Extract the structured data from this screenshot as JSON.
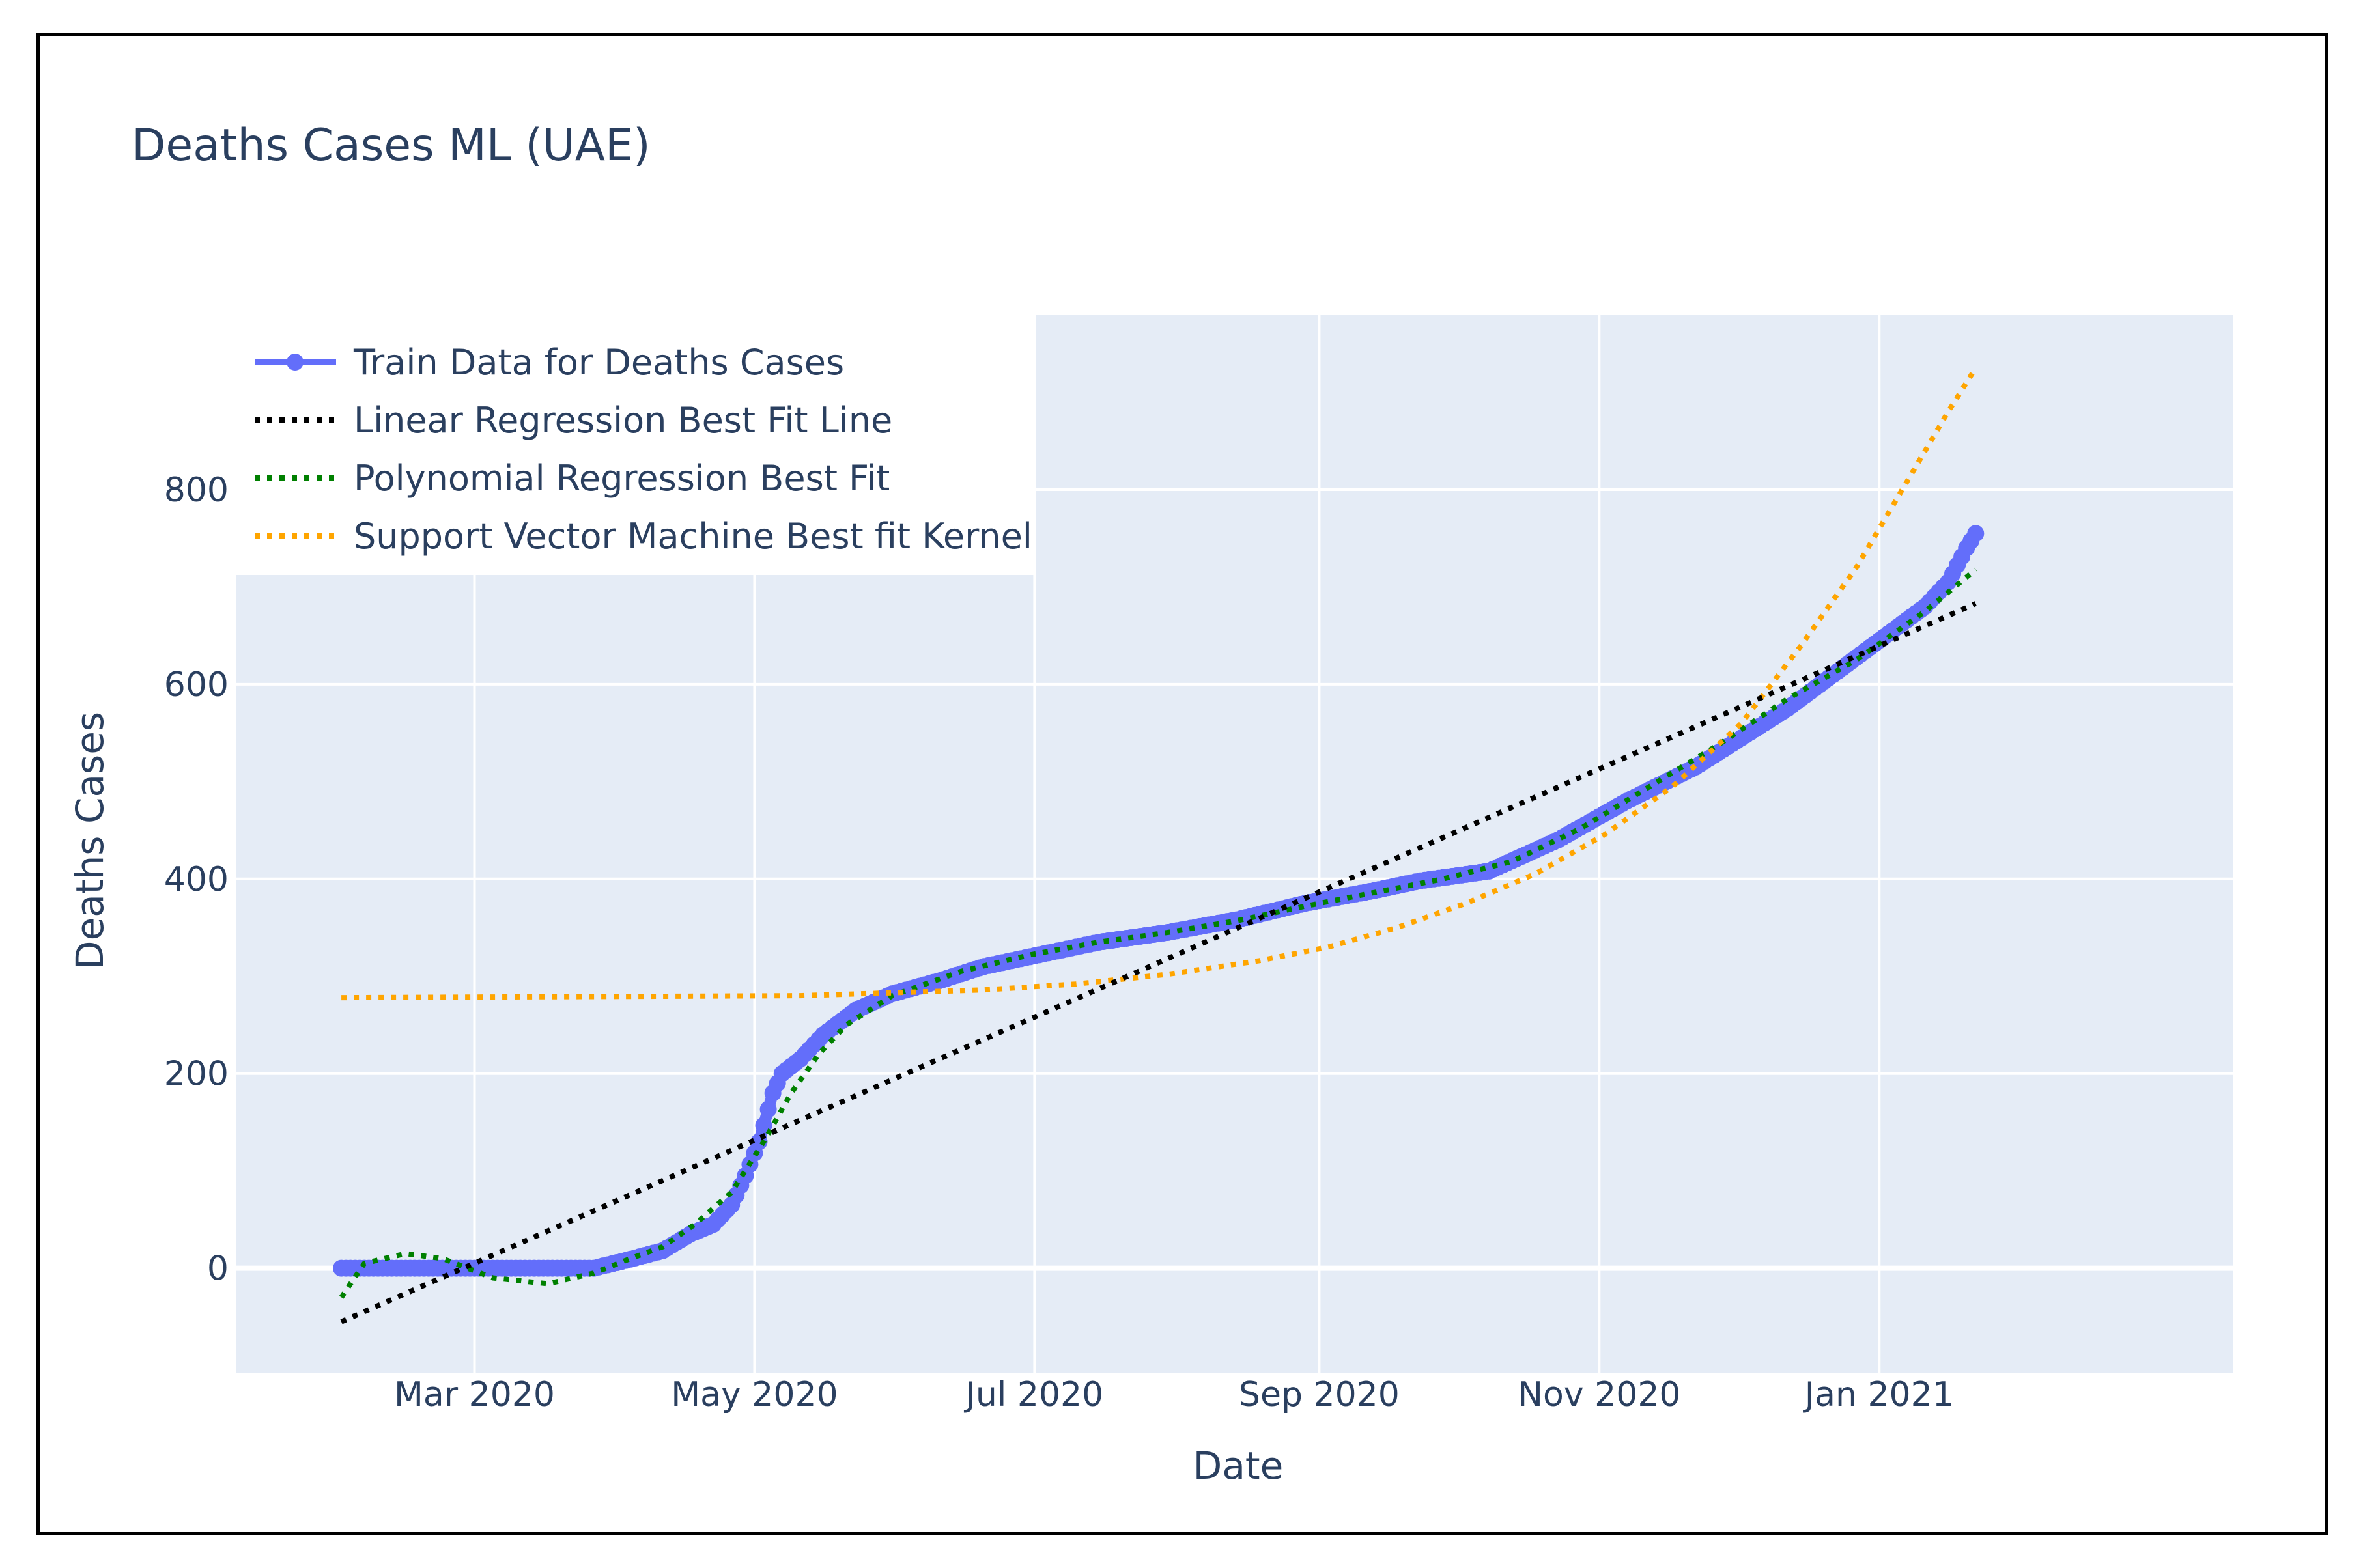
{
  "chart_data": {
    "type": "line",
    "title": "Deaths Cases ML (UAE)",
    "xlabel": "Date",
    "ylabel": "Deaths Cases",
    "x_ticks": [
      {
        "day": 29,
        "label": "Mar 2020"
      },
      {
        "day": 90,
        "label": "May 2020"
      },
      {
        "day": 151,
        "label": "Jul 2020"
      },
      {
        "day": 213,
        "label": "Sep 2020"
      },
      {
        "day": 274,
        "label": "Nov 2020"
      },
      {
        "day": 335,
        "label": "Jan 2021"
      }
    ],
    "x_range_days": [
      -23,
      412
    ],
    "x_start_date": "2020-01-31",
    "y_ticks": [
      0,
      200,
      400,
      600,
      800
    ],
    "ylim": [
      -108,
      980
    ],
    "grid": true,
    "legend_position": "top-left",
    "colors": {
      "plot_bg": "#e5ecf6",
      "train": "#636efa",
      "linear": "#000000",
      "polynomial": "#008000",
      "svm": "#ffa500",
      "text": "#2a3f5f"
    },
    "series": [
      {
        "name": "Train Data for Deaths Cases",
        "style": "line+markers",
        "color": "#636efa",
        "points": [
          [
            0,
            0
          ],
          [
            40,
            0
          ],
          [
            55,
            0
          ],
          [
            62,
            8
          ],
          [
            70,
            18
          ],
          [
            76,
            35
          ],
          [
            81,
            45
          ],
          [
            85,
            65
          ],
          [
            88,
            95
          ],
          [
            91,
            130
          ],
          [
            94,
            180
          ],
          [
            96,
            200
          ],
          [
            100,
            215
          ],
          [
            105,
            240
          ],
          [
            112,
            265
          ],
          [
            120,
            282
          ],
          [
            130,
            295
          ],
          [
            140,
            310
          ],
          [
            150,
            320
          ],
          [
            165,
            335
          ],
          [
            180,
            345
          ],
          [
            195,
            358
          ],
          [
            210,
            375
          ],
          [
            225,
            388
          ],
          [
            235,
            398
          ],
          [
            250,
            408
          ],
          [
            265,
            440
          ],
          [
            280,
            480
          ],
          [
            295,
            515
          ],
          [
            305,
            545
          ],
          [
            315,
            575
          ],
          [
            325,
            610
          ],
          [
            335,
            645
          ],
          [
            345,
            680
          ],
          [
            350,
            705
          ],
          [
            354,
            740
          ],
          [
            356,
            755
          ]
        ]
      },
      {
        "name": "Linear Regression Best Fit Line",
        "style": "dotted",
        "color": "#000000",
        "points": [
          [
            0,
            -55
          ],
          [
            356,
            683
          ]
        ]
      },
      {
        "name": "Polynomial Regression Best Fit",
        "style": "dotted",
        "color": "#008000",
        "points": [
          [
            0,
            -30
          ],
          [
            5,
            5
          ],
          [
            14,
            15
          ],
          [
            22,
            10
          ],
          [
            33,
            -10
          ],
          [
            45,
            -16
          ],
          [
            55,
            -5
          ],
          [
            63,
            10
          ],
          [
            70,
            22
          ],
          [
            77,
            45
          ],
          [
            85,
            78
          ],
          [
            92,
            130
          ],
          [
            98,
            180
          ],
          [
            104,
            220
          ],
          [
            110,
            250
          ],
          [
            120,
            280
          ],
          [
            135,
            305
          ],
          [
            150,
            322
          ],
          [
            165,
            335
          ],
          [
            180,
            345
          ],
          [
            195,
            357
          ],
          [
            210,
            372
          ],
          [
            225,
            386
          ],
          [
            240,
            400
          ],
          [
            255,
            418
          ],
          [
            270,
            452
          ],
          [
            285,
            495
          ],
          [
            300,
            538
          ],
          [
            315,
            585
          ],
          [
            330,
            625
          ],
          [
            345,
            675
          ],
          [
            356,
            718
          ]
        ]
      },
      {
        "name": "Support Vector Machine Best fit Kernel",
        "style": "dotted",
        "color": "#ffa500",
        "points": [
          [
            0,
            278
          ],
          [
            50,
            279
          ],
          [
            100,
            280
          ],
          [
            140,
            286
          ],
          [
            160,
            292
          ],
          [
            180,
            302
          ],
          [
            200,
            316
          ],
          [
            215,
            330
          ],
          [
            230,
            350
          ],
          [
            245,
            375
          ],
          [
            260,
            405
          ],
          [
            275,
            445
          ],
          [
            290,
            495
          ],
          [
            305,
            560
          ],
          [
            318,
            640
          ],
          [
            330,
            720
          ],
          [
            340,
            800
          ],
          [
            350,
            880
          ],
          [
            356,
            925
          ]
        ]
      }
    ]
  }
}
